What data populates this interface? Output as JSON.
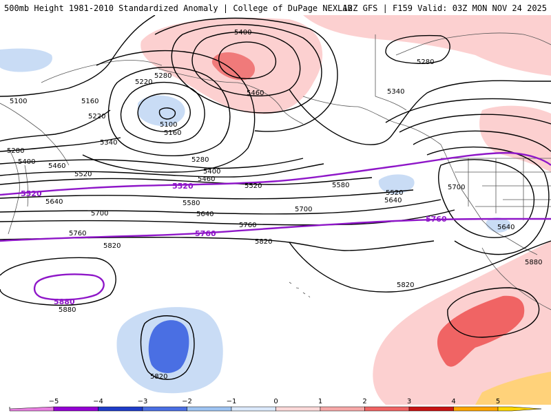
{
  "header": {
    "title_left": "500mb Height 1981-2010 Standardized Anomaly | College of DuPage NEXLAB",
    "title_right": "12Z GFS | F159 Valid: 03Z MON NOV 24 2025"
  },
  "contour_labels": {
    "c5400_a": "5400",
    "c5460_a": "5460",
    "c5280_a": "5280",
    "c5220_a": "5220",
    "c5100_a": "5100",
    "c5160_a": "5160",
    "c5220_b": "5220",
    "c5100_b": "5100",
    "c5160_b": "5160",
    "c5340_a": "5340",
    "c5280_b": "5280",
    "c5280_c": "5280",
    "c5400_b": "5400",
    "c5460_b": "5460",
    "c5520_a": "5520",
    "c5340_b": "5340",
    "c5280_d": "5280",
    "c5400_c": "5400",
    "c5460_c": "5460",
    "c5520_b": "5520",
    "c5580_a": "5580",
    "c5640_a": "5640",
    "c5520_c": "5520",
    "c5580_b": "5580",
    "c5640_b": "5640",
    "c5700_a": "5700",
    "c5700_b": "5700",
    "c5640_c": "5640",
    "c5700_c": "5700",
    "c5760_a": "5760",
    "c5760_b": "5760",
    "c5640_d": "5640",
    "c5820_a": "5820",
    "c5820_b": "5820",
    "c5820_c": "5820",
    "c5880_a": "5880",
    "c5880_b": "5880",
    "c5820_d": "5820"
  },
  "highlight_labels": {
    "p5520_a": "5520",
    "p5520_b": "5520",
    "p5760_a": "5760",
    "p5760_b": "5760",
    "p5880": "5880"
  },
  "colorbar": {
    "ticks": [
      "−5",
      "−4",
      "−3",
      "−2",
      "−1",
      "0",
      "1",
      "2",
      "3",
      "4",
      "5"
    ],
    "colors": [
      "#9400d3",
      "#1e3cc8",
      "#4a6fe3",
      "#9ec4f2",
      "#dbe9fb",
      "#ffffff",
      "#fcd9d9",
      "#f7a8a8",
      "#f06464",
      "#c81414",
      "#ffa500"
    ],
    "left_arrow_color": "#e880e0",
    "right_arrow_color": "#ffd700"
  },
  "colors": {
    "anom_neg_light": "#c9dcf5",
    "anom_neg_mid": "#9ec4f2",
    "anom_neg_strong": "#4a6fe3",
    "anom_pos_light": "#fcd0d0",
    "anom_pos_mid": "#f7a8a8",
    "anom_pos_strong": "#f06464",
    "contour": "#000000",
    "highlight_contour": "#8e16c8",
    "coastline": "#555555"
  }
}
